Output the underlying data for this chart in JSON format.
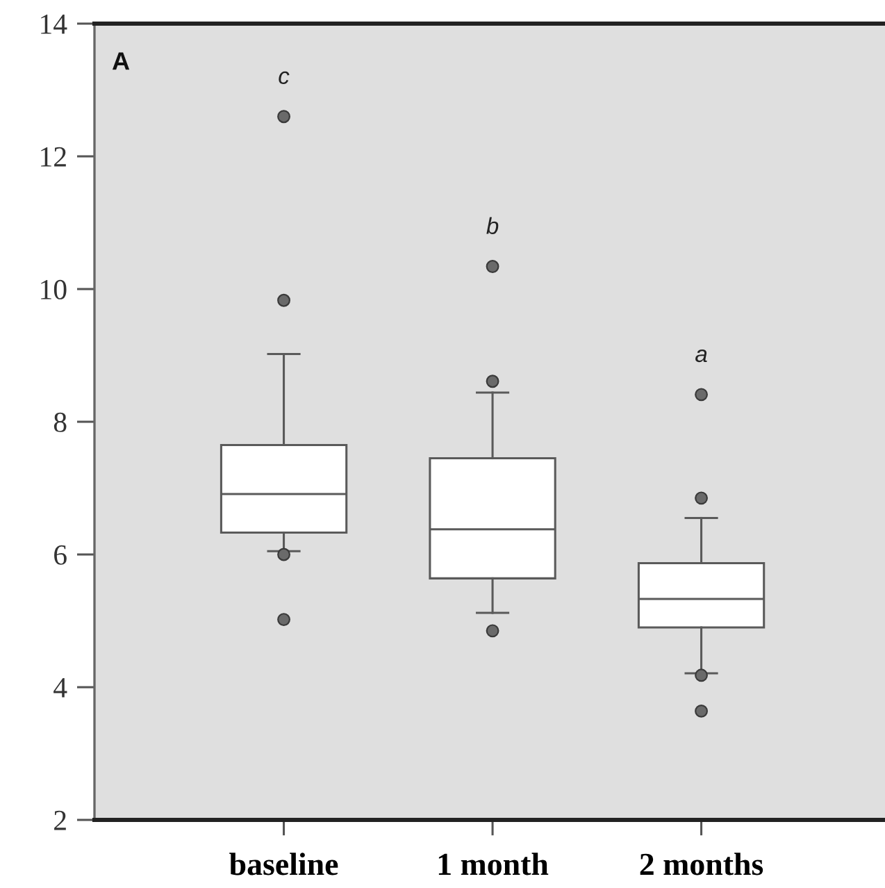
{
  "chart_data": {
    "type": "box",
    "categories": [
      "baseline",
      "1 month",
      "2 months"
    ],
    "series": [
      {
        "color": "#ffffff",
        "boxes": [
          {
            "low": 6.05,
            "q1": 6.33,
            "median": 6.91,
            "q3": 7.65,
            "high": 9.02,
            "outliers": [
              12.6,
              9.83,
              6.0,
              5.02
            ]
          },
          {
            "low": 5.12,
            "q1": 5.64,
            "median": 6.38,
            "q3": 7.45,
            "high": 8.44,
            "outliers": [
              10.34,
              8.61,
              4.85
            ]
          },
          {
            "low": 4.21,
            "q1": 4.9,
            "median": 5.33,
            "q3": 5.87,
            "high": 6.55,
            "outliers": [
              8.41,
              6.85,
              4.18,
              3.64
            ]
          }
        ]
      }
    ],
    "ylim": [
      2,
      14
    ],
    "yticks": [
      2,
      4,
      6,
      8,
      10,
      12,
      14
    ],
    "grid": false,
    "marker": "circle",
    "annotations": [
      "A",
      "c",
      "b",
      "a"
    ]
  }
}
